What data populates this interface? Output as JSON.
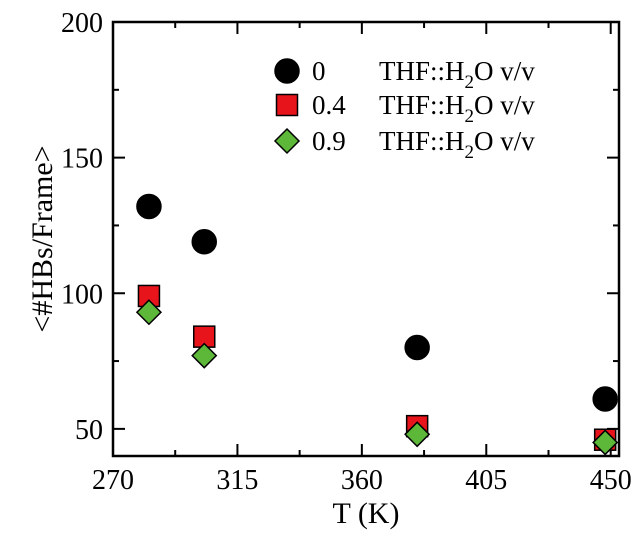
{
  "chart_data": {
    "type": "scatter",
    "title": "",
    "xlabel": "T (K)",
    "ylabel": "<#HBs/Frame>",
    "xlim": [
      270,
      453
    ],
    "ylim": [
      40,
      200
    ],
    "xticks": [
      270,
      315,
      360,
      405,
      450
    ],
    "yticks": [
      50,
      100,
      150,
      200
    ],
    "legend_position": "top-right",
    "series": [
      {
        "name": "0",
        "label_prefix": "0",
        "label_text": "THF::H",
        "label_sub": "2",
        "label_suffix": "O v/v",
        "marker": "circle",
        "color": "#000000",
        "x": [
          283,
          303,
          380,
          448
        ],
        "y": [
          132,
          119,
          80,
          61
        ]
      },
      {
        "name": "0.4",
        "label_prefix": "0.4",
        "label_text": "THF::H",
        "label_sub": "2",
        "label_suffix": "O v/v",
        "marker": "square",
        "color": "#e8141c",
        "x": [
          283,
          303,
          380,
          448
        ],
        "y": [
          99,
          84,
          51,
          46
        ]
      },
      {
        "name": "0.9",
        "label_prefix": "0.9",
        "label_text": "THF::H",
        "label_sub": "2",
        "label_suffix": "O v/v",
        "marker": "diamond",
        "color": "#5db83a",
        "x": [
          283,
          303,
          380,
          448
        ],
        "y": [
          93,
          77,
          48,
          45
        ]
      }
    ]
  }
}
